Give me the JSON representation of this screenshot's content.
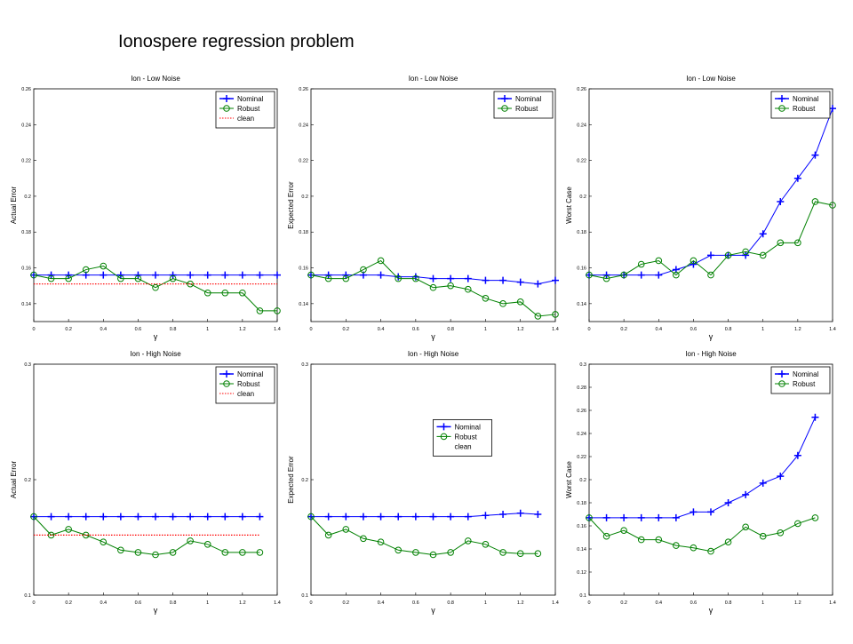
{
  "title": "Ionospere regression problem",
  "chart_data": [
    {
      "type": "line",
      "title": "Ion - Low Noise",
      "x_label": "γ",
      "y_label": "Actual Error",
      "xlim": [
        0,
        1.4
      ],
      "xticks": [
        0,
        0.2,
        0.4,
        0.6,
        0.8,
        1,
        1.2,
        1.4
      ],
      "ylim": [
        0.13,
        0.26
      ],
      "yticks": [
        0.14,
        0.16,
        0.18,
        0.2,
        0.22,
        0.24,
        0.26
      ],
      "legend": "upper right",
      "series": [
        {
          "name": "Nominal",
          "color": "#0000ff",
          "marker": "plus",
          "x": [
            0,
            0.1,
            0.2,
            0.3,
            0.4,
            0.5,
            0.6,
            0.7,
            0.8,
            0.9,
            1,
            1.1,
            1.2,
            1.3,
            1.4
          ],
          "values": [
            0.156,
            0.156,
            0.156,
            0.156,
            0.156,
            0.156,
            0.156,
            0.156,
            0.156,
            0.156,
            0.156,
            0.156,
            0.156,
            0.156,
            0.156
          ]
        },
        {
          "name": "Robust",
          "color": "#008000",
          "marker": "circle",
          "x": [
            0,
            0.1,
            0.2,
            0.3,
            0.4,
            0.5,
            0.6,
            0.7,
            0.8,
            0.9,
            1,
            1.1,
            1.2,
            1.3,
            1.4
          ],
          "values": [
            0.156,
            0.154,
            0.154,
            0.159,
            0.161,
            0.154,
            0.154,
            0.149,
            0.154,
            0.151,
            0.146,
            0.146,
            0.146,
            0.136,
            0.136
          ]
        },
        {
          "name": "clean",
          "color": "#ff0000",
          "marker": "none",
          "dash": "dotted",
          "x": [
            0,
            1.4
          ],
          "values": [
            0.151,
            0.151
          ]
        }
      ]
    },
    {
      "type": "line",
      "title": "Ion - Low Noise",
      "x_label": "γ",
      "y_label": "Expected Error",
      "xlim": [
        0,
        1.4
      ],
      "xticks": [
        0,
        0.2,
        0.4,
        0.6,
        0.8,
        1,
        1.2,
        1.4
      ],
      "ylim": [
        0.13,
        0.26
      ],
      "yticks": [
        0.14,
        0.16,
        0.18,
        0.2,
        0.22,
        0.24,
        0.26
      ],
      "legend": "upper right",
      "series": [
        {
          "name": "Nominal",
          "color": "#0000ff",
          "marker": "plus",
          "x": [
            0,
            0.1,
            0.2,
            0.3,
            0.4,
            0.5,
            0.6,
            0.7,
            0.8,
            0.9,
            1,
            1.1,
            1.2,
            1.3,
            1.4
          ],
          "values": [
            0.156,
            0.156,
            0.156,
            0.156,
            0.156,
            0.155,
            0.155,
            0.154,
            0.154,
            0.154,
            0.153,
            0.153,
            0.152,
            0.151,
            0.153
          ]
        },
        {
          "name": "Robust",
          "color": "#008000",
          "marker": "circle",
          "x": [
            0,
            0.1,
            0.2,
            0.3,
            0.4,
            0.5,
            0.6,
            0.7,
            0.8,
            0.9,
            1,
            1.1,
            1.2,
            1.3,
            1.4
          ],
          "values": [
            0.156,
            0.154,
            0.154,
            0.159,
            0.164,
            0.154,
            0.154,
            0.149,
            0.15,
            0.148,
            0.143,
            0.14,
            0.141,
            0.133,
            0.134
          ]
        }
      ]
    },
    {
      "type": "line",
      "title": "Ion - Low Noise",
      "x_label": "γ",
      "y_label": "Worst Case",
      "xlim": [
        0,
        1.4
      ],
      "xticks": [
        0,
        0.2,
        0.4,
        0.6,
        0.8,
        1,
        1.2,
        1.4
      ],
      "ylim": [
        0.13,
        0.26
      ],
      "yticks": [
        0.14,
        0.16,
        0.18,
        0.2,
        0.22,
        0.24,
        0.26
      ],
      "legend": "upper right",
      "series": [
        {
          "name": "Nominal",
          "color": "#0000ff",
          "marker": "plus",
          "x": [
            0,
            0.1,
            0.2,
            0.3,
            0.4,
            0.5,
            0.6,
            0.7,
            0.8,
            0.9,
            1,
            1.1,
            1.2,
            1.3,
            1.4
          ],
          "values": [
            0.156,
            0.156,
            0.156,
            0.156,
            0.156,
            0.159,
            0.162,
            0.167,
            0.167,
            0.167,
            0.179,
            0.197,
            0.21,
            0.223,
            0.249
          ]
        },
        {
          "name": "Robust",
          "color": "#008000",
          "marker": "circle",
          "x": [
            0,
            0.1,
            0.2,
            0.3,
            0.4,
            0.5,
            0.6,
            0.7,
            0.8,
            0.9,
            1,
            1.1,
            1.2,
            1.3,
            1.4
          ],
          "values": [
            0.156,
            0.154,
            0.156,
            0.162,
            0.164,
            0.156,
            0.164,
            0.156,
            0.167,
            0.169,
            0.167,
            0.174,
            0.174,
            0.197,
            0.195
          ]
        }
      ]
    },
    {
      "type": "line",
      "title": "Ion - High Noise",
      "x_label": "γ",
      "y_label": "Actual Error",
      "xlim": [
        0,
        1.4
      ],
      "xticks": [
        0,
        0.2,
        0.4,
        0.6,
        0.8,
        1,
        1.2,
        1.4
      ],
      "ylim": [
        0.1,
        0.3
      ],
      "yticks": [
        0.1,
        0.2,
        0.3
      ],
      "legend": "upper right",
      "series": [
        {
          "name": "Nominal",
          "color": "#0000ff",
          "marker": "plus",
          "x": [
            0,
            0.1,
            0.2,
            0.3,
            0.4,
            0.5,
            0.6,
            0.7,
            0.8,
            0.9,
            1,
            1.1,
            1.2,
            1.3
          ],
          "values": [
            0.168,
            0.168,
            0.168,
            0.168,
            0.168,
            0.168,
            0.168,
            0.168,
            0.168,
            0.168,
            0.168,
            0.168,
            0.168,
            0.168
          ]
        },
        {
          "name": "Robust",
          "color": "#008000",
          "marker": "circle",
          "x": [
            0,
            0.1,
            0.2,
            0.3,
            0.4,
            0.5,
            0.6,
            0.7,
            0.8,
            0.9,
            1,
            1.1,
            1.2,
            1.3
          ],
          "values": [
            0.168,
            0.152,
            0.157,
            0.152,
            0.146,
            0.139,
            0.137,
            0.135,
            0.137,
            0.147,
            0.144,
            0.137,
            0.137,
            0.137
          ]
        },
        {
          "name": "clean",
          "color": "#ff0000",
          "marker": "none",
          "dash": "dotted",
          "x": [
            0,
            1.3
          ],
          "values": [
            0.152,
            0.152
          ]
        }
      ]
    },
    {
      "type": "line",
      "title": "Ion - High Noise",
      "x_label": "γ",
      "y_label": "Expected Error",
      "xlim": [
        0,
        1.4
      ],
      "xticks": [
        0,
        0.2,
        0.4,
        0.6,
        0.8,
        1,
        1.2,
        1.4
      ],
      "ylim": [
        0.1,
        0.3
      ],
      "yticks": [
        0.1,
        0.2,
        0.3
      ],
      "legend": "center right",
      "series": [
        {
          "name": "Nominal",
          "color": "#0000ff",
          "marker": "plus",
          "x": [
            0,
            0.1,
            0.2,
            0.3,
            0.4,
            0.5,
            0.6,
            0.7,
            0.8,
            0.9,
            1,
            1.1,
            1.2,
            1.3
          ],
          "values": [
            0.168,
            0.168,
            0.168,
            0.168,
            0.168,
            0.168,
            0.168,
            0.168,
            0.168,
            0.168,
            0.169,
            0.17,
            0.171,
            0.17
          ]
        },
        {
          "name": "Robust",
          "color": "#008000",
          "marker": "circle",
          "x": [
            0,
            0.1,
            0.2,
            0.3,
            0.4,
            0.5,
            0.6,
            0.7,
            0.8,
            0.9,
            1,
            1.1,
            1.2,
            1.3
          ],
          "values": [
            0.168,
            0.152,
            0.157,
            0.149,
            0.146,
            0.139,
            0.137,
            0.135,
            0.137,
            0.147,
            0.144,
            0.137,
            0.136,
            0.136
          ]
        },
        {
          "name": "clean",
          "color": "#ff0000",
          "marker": "none",
          "x": [],
          "values": []
        }
      ]
    },
    {
      "type": "line",
      "title": "Ion - High Noise",
      "x_label": "γ",
      "y_label": "Worst Case",
      "xlim": [
        0,
        1.4
      ],
      "xticks": [
        0,
        0.2,
        0.4,
        0.6,
        0.8,
        1,
        1.2,
        1.4
      ],
      "ylim": [
        0.1,
        0.3
      ],
      "yticks": [
        0.1,
        0.12,
        0.14,
        0.16,
        0.18,
        0.2,
        0.22,
        0.24,
        0.26,
        0.28,
        0.3
      ],
      "legend": "upper right",
      "series": [
        {
          "name": "Nominal",
          "color": "#0000ff",
          "marker": "plus",
          "x": [
            0,
            0.1,
            0.2,
            0.3,
            0.4,
            0.5,
            0.6,
            0.7,
            0.8,
            0.9,
            1,
            1.1,
            1.2,
            1.3
          ],
          "values": [
            0.167,
            0.167,
            0.167,
            0.167,
            0.167,
            0.167,
            0.172,
            0.172,
            0.18,
            0.187,
            0.197,
            0.203,
            0.221,
            0.254
          ]
        },
        {
          "name": "Robust",
          "color": "#008000",
          "marker": "circle",
          "x": [
            0,
            0.1,
            0.2,
            0.3,
            0.4,
            0.5,
            0.6,
            0.7,
            0.8,
            0.9,
            1,
            1.1,
            1.2,
            1.3
          ],
          "values": [
            0.167,
            0.151,
            0.156,
            0.148,
            0.148,
            0.143,
            0.141,
            0.138,
            0.146,
            0.159,
            0.151,
            0.154,
            0.162,
            0.167
          ]
        }
      ]
    }
  ]
}
